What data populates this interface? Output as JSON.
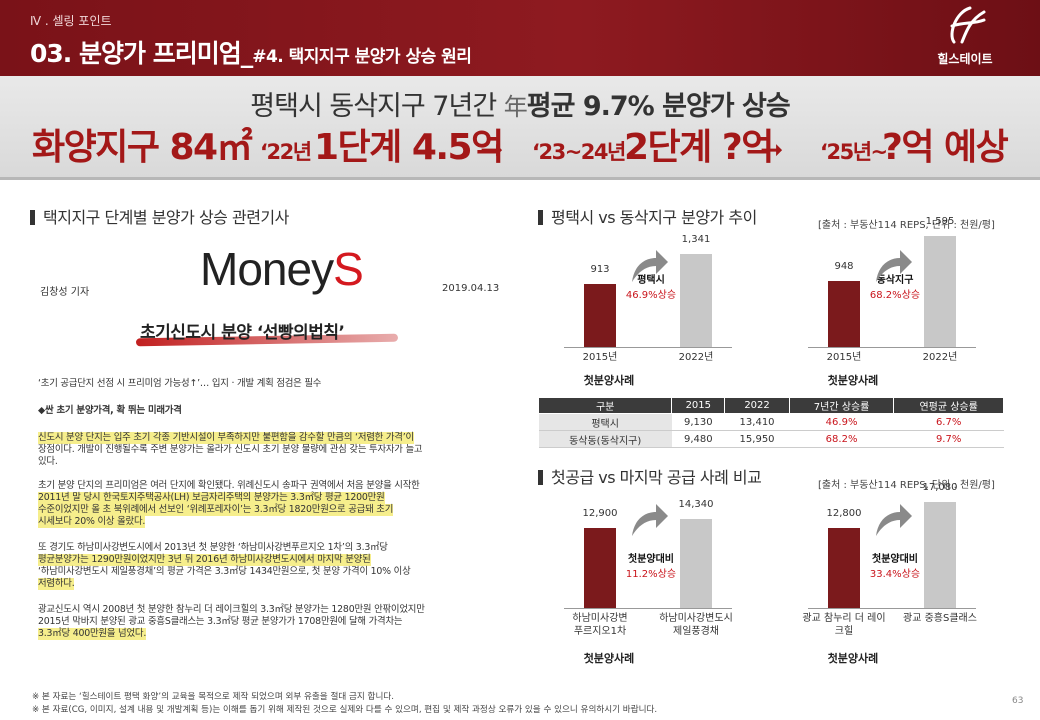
{
  "header": {
    "section": "Ⅳ . 셀링 포인트",
    "title_main": "03. 분양가 프리미엄_",
    "title_sub": "#4. 택지지구 분양가 상승 원리",
    "brand": "힐스테이트"
  },
  "banner": {
    "line1_pre": "평택시 동삭지구 7년간 ",
    "line1_kanji": "年",
    "line1_post": "평균 9.7% 분양가 상승",
    "area": "화양지구 84㎡",
    "step1_year": "‘22년",
    "step1_text": "1단계 4.5억",
    "step2_year": "‘23~24년",
    "step2_text": "2단계 ?억",
    "step3_year": "‘25년~",
    "step3_text": "?억 예상",
    "arrow": "➞"
  },
  "left_section": {
    "heading": "택지지구 단계별 분양가 상승 관련기사",
    "outlet_a": "Money",
    "outlet_b": "S",
    "reporter": "김창성 기자",
    "date": "2019.04.13",
    "headline": "초기신도시 분양 ‘선빵의법칙’",
    "lines": [
      "‘초기 공급단지 선점 시 프리미엄 가능성↑’… 입지 · 개발 계획 점검은 필수",
      "◆싼 초기 분양가격, 확 뛰는 미래가격",
      "신도시 분양 단지는 입주 초기 각종 기반시설이 부족하지만 불편함을 감수할 만큼의 ‘저렴한 가격’이",
      "장점이다. 개발이 진행될수록 주변 분양가는 올라가 신도시 초기 분양 물량에 관심 갖는 투자자가 늘고",
      "있다.",
      "초기 분양 단지의 프리미엄은 여러 단지에 확인됐다. 위례신도시 송파구 권역에서 처음 분양을 시작한",
      "2011년 말 당시 한국토지주택공사(LH) 보금자리주택의 분양가는 3.3㎡당 평균 1200만원",
      "수준이었지만 올 초 북위례에서 선보인 ‘위례포레자이’는 3.3㎡당 1820만원으로 공급돼 초기",
      "시세보다 20% 이상 올랐다.",
      "또 경기도 하남미사강변도시에서 2013년 첫 분양한 ‘하남미사강변푸르지오 1차’의 3.3㎡당",
      "평균분양가는 1290만원이었지만 3년 뒤 2016년 하남미사강변도시에서 마지막 분양된",
      "‘하남미사강변도시 제일풍경채’의 평균 가격은 3.3㎡당 1434만원으로, 첫 분양 가격이 10% 이상",
      "저렴하다.",
      "광교신도시 역시 2008년 첫 분양한 참누리 더 레이크힐의 3.3㎡당 분양가는 1280만원 안팎이었지만",
      "2015년 막바지 분양된 광교 중흥S클래스는 3.3㎡당 평균 분양가가 1708만원에 달해 가격차는",
      "3.3㎡당 400만원을 넘었다."
    ]
  },
  "chart1": {
    "heading": "평택시 vs 동삭지구 분양가 추이",
    "source": "[출처 : 부동산114 REPS, 단위 : 천원/평]",
    "callout_a_name": "평택시",
    "callout_a_rate": "46.9%상승",
    "callout_b_name": "동삭지구",
    "callout_b_rate": "68.2%상승",
    "caption": "첫분양사례"
  },
  "chart2": {
    "heading": "첫공급 vs 마지막 공급 사례 비교",
    "source": "[출처 : 부동산114 REPS, 단위 : 천원/평]",
    "callout_a_name": "첫분양대비",
    "callout_a_rate": "11.2%상승",
    "callout_b_name": "첫분양대비",
    "callout_b_rate": "33.4%상승",
    "caption": "첫분양사례"
  },
  "chart_data": [
    {
      "type": "bar",
      "title": "평택시 vs 동삭지구 분양가 추이",
      "unit": "천원/평",
      "groups": [
        {
          "name": "평택시",
          "categories": [
            "2015년",
            "2022년"
          ],
          "values": [
            913,
            1341
          ]
        },
        {
          "name": "동삭지구",
          "categories": [
            "2015년",
            "2022년"
          ],
          "values": [
            948,
            1595
          ]
        }
      ],
      "colors": [
        "#7b1a1c",
        "#c8c8c8"
      ],
      "ylim": [
        0,
        1700
      ]
    },
    {
      "type": "bar",
      "title": "첫공급 vs 마지막 공급 사례 비교",
      "unit": "천원/평",
      "groups": [
        {
          "name": "하남미사강변도시",
          "categories": [
            "하남미사강변\n푸르지오1차",
            "하남미사강변도시\n제일풍경채"
          ],
          "values": [
            12900,
            14340
          ]
        },
        {
          "name": "광교신도시",
          "categories": [
            "광교 참누리 더 레이크힐",
            "광교 중흥S클래스"
          ],
          "values": [
            12800,
            17080
          ]
        }
      ],
      "colors": [
        "#7b1a1c",
        "#c8c8c8"
      ],
      "ylim": [
        0,
        18000
      ]
    },
    {
      "type": "table",
      "columns": [
        "구분",
        "2015",
        "2022",
        "7년간 상승률",
        "연평균 상승률"
      ],
      "rows": [
        [
          "평택시",
          "9,130",
          "13,410",
          "46.9%",
          "6.7%"
        ],
        [
          "동삭동(동삭지구)",
          "9,480",
          "15,950",
          "68.2%",
          "9.7%"
        ]
      ]
    }
  ],
  "footer": {
    "note1": "※ 본 자료는 ‘힐스테이트 평택 화양’의 교육을 목적으로 제작 되었으며 외부 유출을 절대 금지 합니다.",
    "note2": "※ 본 자료(CG, 이미지, 설계 내용 및 개발계획 등)는 이해를 돕기 위해 제작된 것으로 실제와 다를 수 있으며, 편집 및 제작 과정상 오류가 있을 수 있으니 유의하시기 바랍니다.",
    "page": "63"
  },
  "colors": {
    "brand": "#7b1a1c",
    "accent_red": "#c9151c",
    "highlight": "#f6ee8c"
  }
}
